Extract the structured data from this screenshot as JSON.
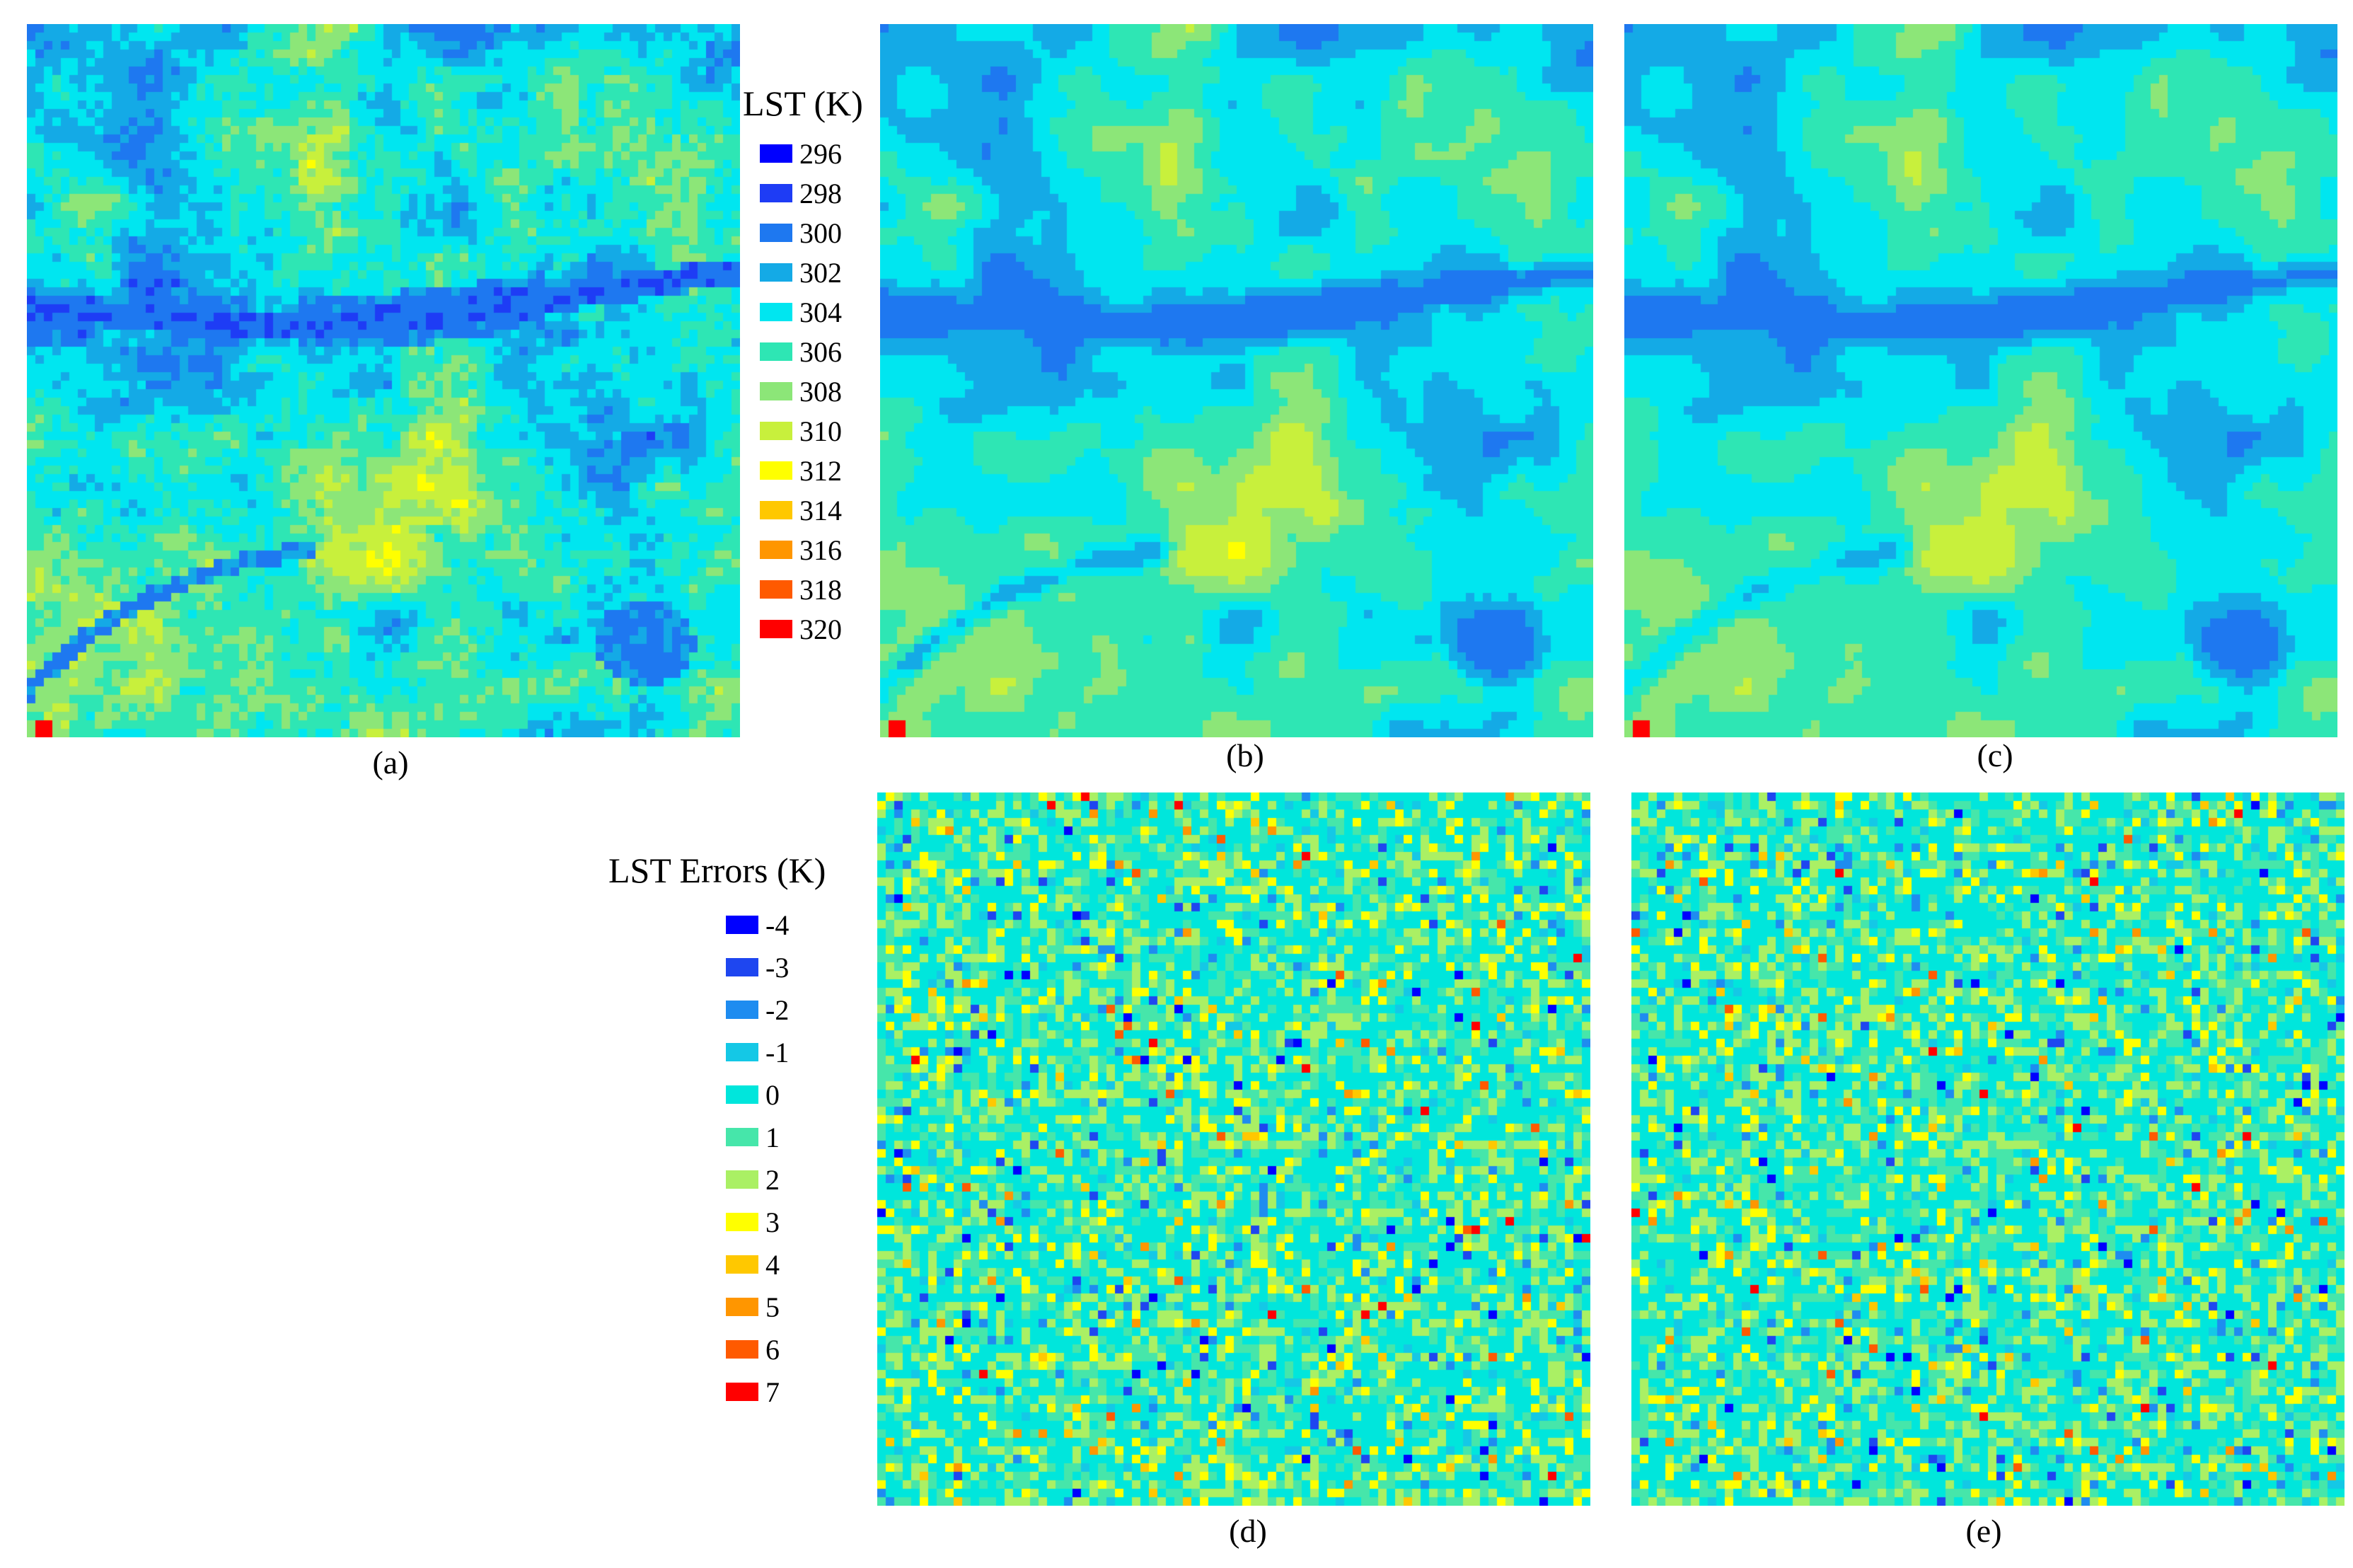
{
  "panels": [
    {
      "id": "a",
      "caption": "(a)",
      "kind": "lst",
      "smooth": 0.0,
      "seed": 11
    },
    {
      "id": "b",
      "caption": "(b)",
      "kind": "lst",
      "smooth": 0.45,
      "seed": 23
    },
    {
      "id": "c",
      "caption": "(c)",
      "kind": "lst",
      "smooth": 0.8,
      "seed": 37
    },
    {
      "id": "d",
      "caption": "(d)",
      "kind": "err",
      "seed": 51
    },
    {
      "id": "e",
      "caption": "(e)",
      "kind": "err",
      "seed": 67
    }
  ],
  "legend_lst": {
    "title": "LST (K)",
    "items": [
      {
        "label": "296",
        "color": "#0000ff"
      },
      {
        "label": "298",
        "color": "#1e3cf5"
      },
      {
        "label": "300",
        "color": "#1e78f0"
      },
      {
        "label": "302",
        "color": "#14aae6"
      },
      {
        "label": "304",
        "color": "#00e6f0"
      },
      {
        "label": "306",
        "color": "#2ee6b4"
      },
      {
        "label": "308",
        "color": "#8ce678"
      },
      {
        "label": "310",
        "color": "#c8f03c"
      },
      {
        "label": "312",
        "color": "#ffff00"
      },
      {
        "label": "314",
        "color": "#ffc800"
      },
      {
        "label": "316",
        "color": "#ff9600"
      },
      {
        "label": "318",
        "color": "#ff5a00"
      },
      {
        "label": "320",
        "color": "#ff0000"
      }
    ]
  },
  "legend_err": {
    "title": "LST Errors (K)",
    "items": [
      {
        "label": "-4",
        "color": "#0000ff"
      },
      {
        "label": "-3",
        "color": "#1e46f0"
      },
      {
        "label": "-2",
        "color": "#1e8cf0"
      },
      {
        "label": "-1",
        "color": "#14c8e6"
      },
      {
        "label": "0",
        "color": "#00e6dc"
      },
      {
        "label": "1",
        "color": "#46e6aa"
      },
      {
        "label": "2",
        "color": "#aaf064"
      },
      {
        "label": "3",
        "color": "#ffff00"
      },
      {
        "label": "4",
        "color": "#ffc800"
      },
      {
        "label": "5",
        "color": "#ff9600"
      },
      {
        "label": "6",
        "color": "#ff5a00"
      },
      {
        "label": "7",
        "color": "#ff0000"
      }
    ]
  }
}
